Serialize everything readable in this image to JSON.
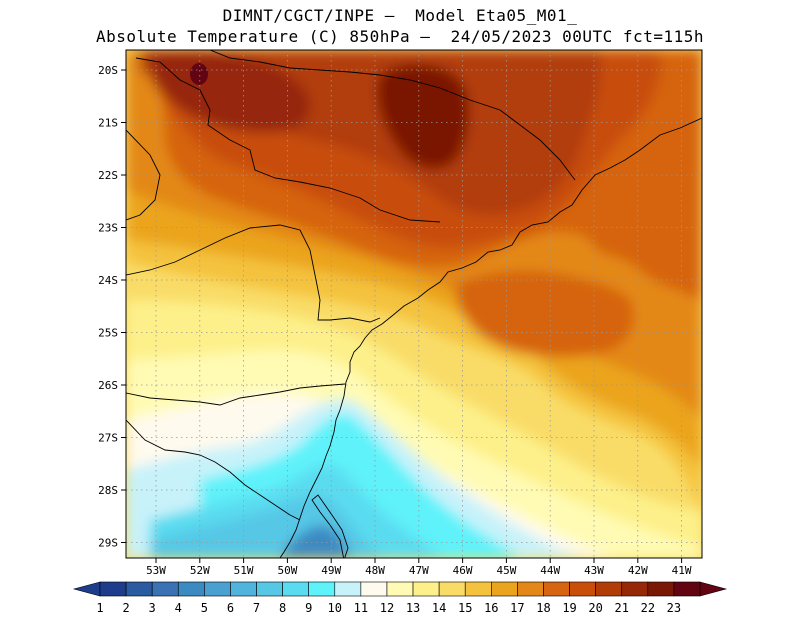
{
  "header": {
    "line1": "DIMNT/CGCT/INPE –  Model Eta05_M01_",
    "line2": "Absolute Temperature (C) 850hPa –  24/05/2023 00UTC fct=115h"
  },
  "map": {
    "lat_labels": [
      "20S",
      "21S",
      "22S",
      "23S",
      "24S",
      "25S",
      "26S",
      "27S",
      "28S",
      "29S"
    ],
    "lon_labels": [
      "53W",
      "52W",
      "51W",
      "50W",
      "49W",
      "48W",
      "47W",
      "46W",
      "45W",
      "44W",
      "43W",
      "42W",
      "41W"
    ]
  },
  "colorbar": {
    "labels": [
      "1",
      "2",
      "3",
      "4",
      "5",
      "6",
      "7",
      "8",
      "9",
      "10",
      "11",
      "12",
      "13",
      "14",
      "15",
      "16",
      "17",
      "18",
      "19",
      "20",
      "21",
      "22",
      "23"
    ],
    "colors": [
      "#1e3c8c",
      "#2a5aa0",
      "#3a72b4",
      "#3c8ac2",
      "#4aa0d0",
      "#50b4dc",
      "#56c8e6",
      "#5adcf0",
      "#5ef2fa",
      "#c8f2fa",
      "#fffaee",
      "#fffbb4",
      "#fdf08a",
      "#f9dc68",
      "#f4c23c",
      "#eba41e",
      "#e38818",
      "#d66410",
      "#c84e0a",
      "#b23c08",
      "#962808",
      "#7a1806",
      "#620412"
    ],
    "underflow_color": "#1e3c8c",
    "overflow_color": "#620412"
  }
}
